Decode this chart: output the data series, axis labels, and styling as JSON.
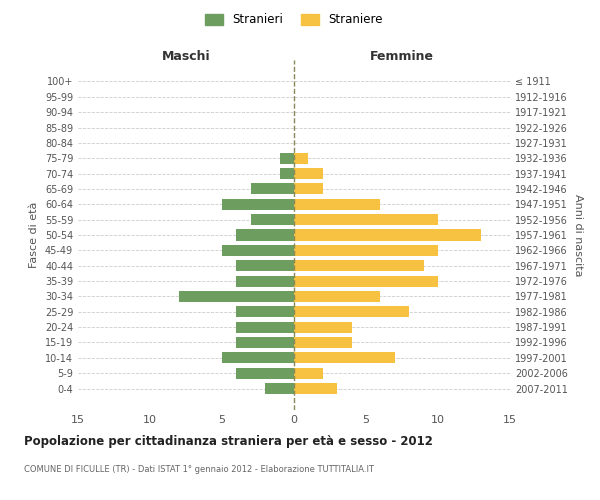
{
  "age_groups": [
    "100+",
    "95-99",
    "90-94",
    "85-89",
    "80-84",
    "75-79",
    "70-74",
    "65-69",
    "60-64",
    "55-59",
    "50-54",
    "45-49",
    "40-44",
    "35-39",
    "30-34",
    "25-29",
    "20-24",
    "15-19",
    "10-14",
    "5-9",
    "0-4"
  ],
  "birth_years": [
    "≤ 1911",
    "1912-1916",
    "1917-1921",
    "1922-1926",
    "1927-1931",
    "1932-1936",
    "1937-1941",
    "1942-1946",
    "1947-1951",
    "1952-1956",
    "1957-1961",
    "1962-1966",
    "1967-1971",
    "1972-1976",
    "1977-1981",
    "1982-1986",
    "1987-1991",
    "1992-1996",
    "1997-2001",
    "2002-2006",
    "2007-2011"
  ],
  "maschi": [
    0,
    0,
    0,
    0,
    0,
    1,
    1,
    3,
    5,
    3,
    4,
    5,
    4,
    4,
    8,
    4,
    4,
    4,
    5,
    4,
    2
  ],
  "femmine": [
    0,
    0,
    0,
    0,
    0,
    1,
    2,
    2,
    6,
    10,
    13,
    10,
    9,
    10,
    6,
    8,
    4,
    4,
    7,
    2,
    3
  ],
  "male_color": "#6e9e5f",
  "female_color": "#f7c242",
  "background_color": "#ffffff",
  "grid_color": "#cccccc",
  "center_line_color": "#888855",
  "title": "Popolazione per cittadinanza straniera per età e sesso - 2012",
  "subtitle": "COMUNE DI FICULLE (TR) - Dati ISTAT 1° gennaio 2012 - Elaborazione TUTTITALIA.IT",
  "xlabel_left": "Maschi",
  "xlabel_right": "Femmine",
  "ylabel_left": "Fasce di età",
  "ylabel_right": "Anni di nascita",
  "legend_male": "Stranieri",
  "legend_female": "Straniere",
  "xlim": 15
}
